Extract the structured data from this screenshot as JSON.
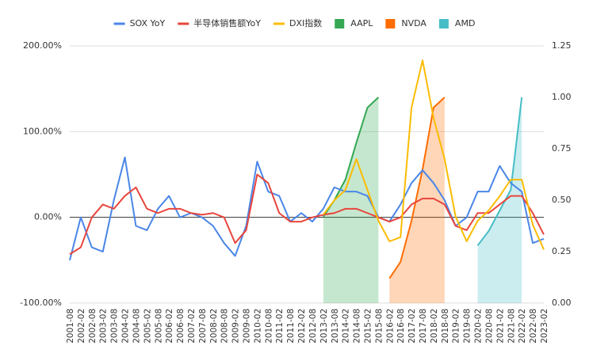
{
  "chart_data": {
    "type": "line",
    "categories": [
      "2001-08",
      "2002-02",
      "2002-08",
      "2003-02",
      "2003-08",
      "2004-02",
      "2004-08",
      "2005-02",
      "2005-08",
      "2006-02",
      "2006-08",
      "2007-02",
      "2007-08",
      "2008-02",
      "2008-08",
      "2009-02",
      "2009-08",
      "2010-02",
      "2010-08",
      "2011-02",
      "2011-08",
      "2012-02",
      "2012-08",
      "2013-02",
      "2013-08",
      "2014-02",
      "2014-08",
      "2015-02",
      "2015-08",
      "2016-02",
      "2016-08",
      "2017-02",
      "2017-08",
      "2018-02",
      "2018-08",
      "2019-02",
      "2019-08",
      "2020-02",
      "2020-08",
      "2021-02",
      "2021-08",
      "2022-02",
      "2022-08",
      "2023-02"
    ],
    "series": [
      {
        "name": "SOX YoY",
        "type": "line",
        "color": "#4a86e8",
        "values": [
          -50,
          0,
          -35,
          -40,
          20,
          70,
          -10,
          -15,
          10,
          25,
          0,
          5,
          0,
          -10,
          -30,
          -45,
          -10,
          65,
          30,
          25,
          -5,
          5,
          -5,
          10,
          35,
          30,
          30,
          25,
          0,
          -5,
          15,
          40,
          55,
          40,
          20,
          -10,
          0,
          30,
          30,
          60,
          40,
          30,
          -30,
          -25
        ]
      },
      {
        "name": "半导体销售额YoY",
        "type": "line",
        "color": "#e8453c",
        "values": [
          -43,
          -35,
          0,
          15,
          10,
          25,
          35,
          10,
          5,
          10,
          10,
          5,
          3,
          5,
          0,
          -30,
          -15,
          50,
          40,
          5,
          -5,
          -5,
          0,
          3,
          5,
          10,
          10,
          5,
          0,
          -5,
          0,
          15,
          22,
          22,
          15,
          -10,
          -15,
          5,
          5,
          15,
          25,
          25,
          5,
          -20
        ]
      },
      {
        "name": "DXI指数",
        "type": "line",
        "axis": "y2",
        "color": "#fbbc04",
        "values": [
          null,
          null,
          null,
          null,
          null,
          null,
          null,
          null,
          null,
          null,
          null,
          null,
          null,
          null,
          null,
          null,
          null,
          null,
          null,
          null,
          null,
          null,
          null,
          0.43,
          0.5,
          0.55,
          0.7,
          0.55,
          0.4,
          0.3,
          0.32,
          0.95,
          1.18,
          0.9,
          0.7,
          0.42,
          0.3,
          0.4,
          0.45,
          0.52,
          0.6,
          0.6,
          0.38,
          0.26
        ]
      },
      {
        "name": "AAPL",
        "type": "area",
        "axis": "y2",
        "color": "#34a853",
        "values": [
          null,
          null,
          null,
          null,
          null,
          null,
          null,
          null,
          null,
          null,
          null,
          null,
          null,
          null,
          null,
          null,
          null,
          null,
          null,
          null,
          null,
          null,
          null,
          0.42,
          0.5,
          0.6,
          0.78,
          0.95,
          1.0,
          null,
          null,
          null,
          null,
          null,
          null,
          null,
          null,
          null,
          null,
          null,
          null,
          null,
          null,
          null
        ]
      },
      {
        "name": "NVDA",
        "type": "area",
        "axis": "y2",
        "color": "#ff6d01",
        "values": [
          null,
          null,
          null,
          null,
          null,
          null,
          null,
          null,
          null,
          null,
          null,
          null,
          null,
          null,
          null,
          null,
          null,
          null,
          null,
          null,
          null,
          null,
          null,
          null,
          null,
          null,
          null,
          null,
          null,
          0.12,
          0.2,
          0.4,
          0.65,
          0.95,
          1.0,
          null,
          null,
          null,
          null,
          null,
          null,
          null,
          null,
          null
        ]
      },
      {
        "name": "AMD",
        "type": "area",
        "axis": "y2",
        "color": "#46bdc6",
        "values": [
          null,
          null,
          null,
          null,
          null,
          null,
          null,
          null,
          null,
          null,
          null,
          null,
          null,
          null,
          null,
          null,
          null,
          null,
          null,
          null,
          null,
          null,
          null,
          null,
          null,
          null,
          null,
          null,
          null,
          null,
          null,
          null,
          null,
          null,
          null,
          null,
          null,
          0.28,
          0.35,
          0.45,
          0.55,
          1.0,
          null,
          null
        ]
      }
    ],
    "ylim": [
      -100,
      200
    ],
    "yticks": [
      {
        "value": -100,
        "label": "-100.00%"
      },
      {
        "value": 0,
        "label": "0.00%"
      },
      {
        "value": 100,
        "label": "100.00%"
      },
      {
        "value": 200,
        "label": "200.00%"
      }
    ],
    "y2lim": [
      0,
      1.25
    ],
    "y2ticks": [
      {
        "value": 0,
        "label": "0.00"
      },
      0.25,
      {
        "value": 0.5,
        "label": "0.50"
      },
      0.75,
      {
        "value": 1,
        "label": "1.00"
      },
      1.25
    ],
    "grid": true,
    "legend": "top"
  }
}
